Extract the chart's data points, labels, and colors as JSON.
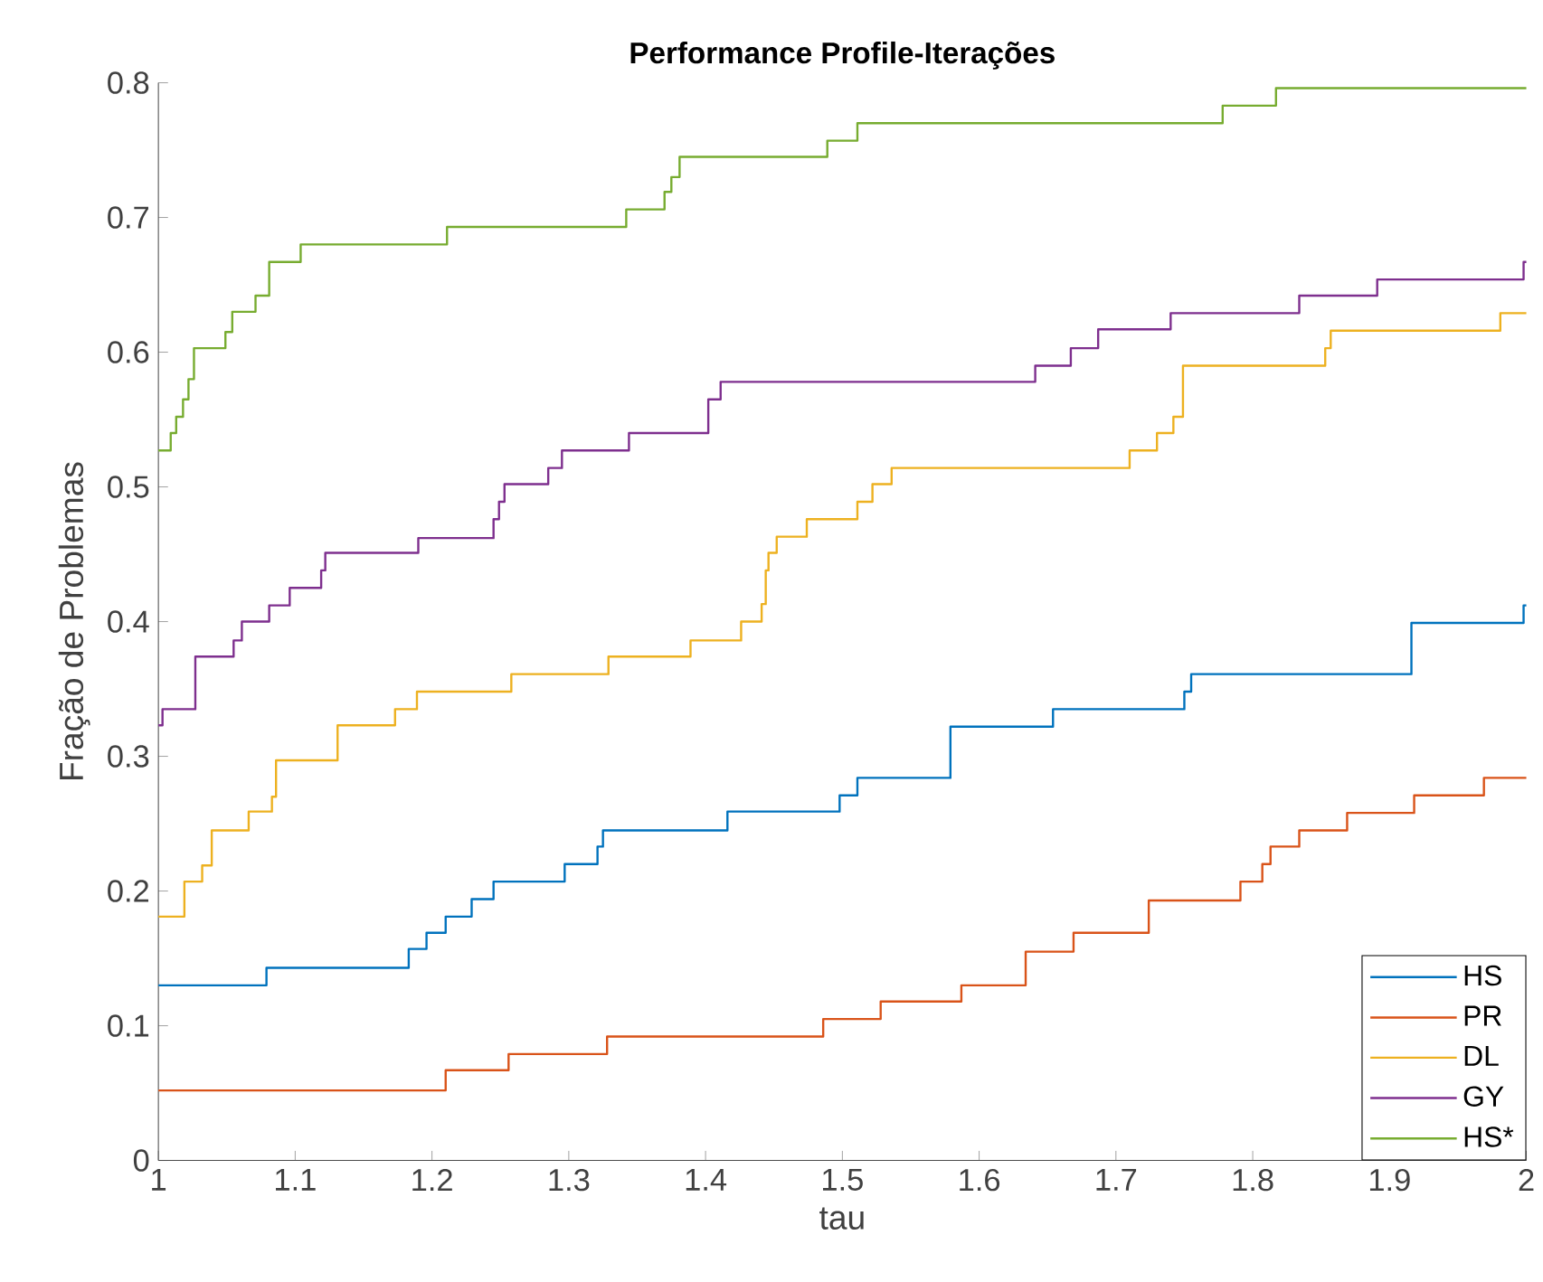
{
  "chart_data": {
    "type": "step",
    "title": "Performance Profile-Iterações",
    "xlabel": "tau",
    "ylabel": "Fração de Problemas",
    "xlim": [
      1,
      2
    ],
    "ylim": [
      0,
      0.8
    ],
    "xticks": [
      1,
      1.1,
      1.2,
      1.3,
      1.4,
      1.5,
      1.6,
      1.7,
      1.8,
      1.9,
      2
    ],
    "yticks": [
      0,
      0.1,
      0.2,
      0.3,
      0.4,
      0.5,
      0.6,
      0.7,
      0.8
    ],
    "grid": false,
    "legend": "bottom right",
    "marker": "none",
    "line_style": "solid",
    "series": [
      {
        "name": "HS",
        "color": "#0072bd",
        "x": [
          1,
          1.079,
          1.183,
          1.196,
          1.21,
          1.229,
          1.245,
          1.297,
          1.321,
          1.325,
          1.416,
          1.498,
          1.511,
          1.579,
          1.654,
          1.75,
          1.755,
          1.916,
          1.998,
          2
        ],
        "values": [
          0.13,
          0.143,
          0.157,
          0.169,
          0.181,
          0.194,
          0.207,
          0.22,
          0.233,
          0.245,
          0.259,
          0.271,
          0.284,
          0.322,
          0.335,
          0.348,
          0.361,
          0.399,
          0.412,
          0.412
        ]
      },
      {
        "name": "PR",
        "color": "#d95319",
        "x": [
          1,
          1.21,
          1.256,
          1.328,
          1.486,
          1.528,
          1.587,
          1.634,
          1.669,
          1.724,
          1.791,
          1.807,
          1.813,
          1.834,
          1.869,
          1.918,
          1.969,
          2
        ],
        "values": [
          0.052,
          0.067,
          0.079,
          0.092,
          0.105,
          0.118,
          0.13,
          0.155,
          0.169,
          0.193,
          0.207,
          0.22,
          0.233,
          0.245,
          0.258,
          0.271,
          0.284,
          0.284
        ]
      },
      {
        "name": "DL",
        "color": "#edb120",
        "x": [
          1,
          1.019,
          1.032,
          1.039,
          1.066,
          1.083,
          1.086,
          1.131,
          1.173,
          1.189,
          1.258,
          1.329,
          1.389,
          1.426,
          1.441,
          1.444,
          1.446,
          1.449,
          1.452,
          1.474,
          1.511,
          1.522,
          1.536,
          1.71,
          1.73,
          1.742,
          1.749,
          1.853,
          1.857,
          1.981,
          2
        ],
        "values": [
          0.181,
          0.207,
          0.219,
          0.245,
          0.259,
          0.27,
          0.297,
          0.323,
          0.335,
          0.348,
          0.361,
          0.374,
          0.386,
          0.4,
          0.413,
          0.438,
          0.451,
          0.451,
          0.463,
          0.476,
          0.489,
          0.502,
          0.514,
          0.527,
          0.54,
          0.552,
          0.59,
          0.603,
          0.616,
          0.629,
          0.629
        ]
      },
      {
        "name": "GY",
        "color": "#7e2f8e",
        "x": [
          1,
          1.003,
          1.027,
          1.055,
          1.061,
          1.081,
          1.096,
          1.119,
          1.122,
          1.19,
          1.245,
          1.249,
          1.253,
          1.285,
          1.295,
          1.344,
          1.402,
          1.411,
          1.641,
          1.667,
          1.687,
          1.74,
          1.834,
          1.891,
          1.998,
          2
        ],
        "values": [
          0.323,
          0.335,
          0.374,
          0.386,
          0.4,
          0.412,
          0.425,
          0.438,
          0.451,
          0.462,
          0.476,
          0.489,
          0.502,
          0.514,
          0.527,
          0.54,
          0.565,
          0.578,
          0.59,
          0.603,
          0.617,
          0.629,
          0.642,
          0.654,
          0.667,
          0.667
        ]
      },
      {
        "name": "HS*",
        "color": "#77ac30",
        "x": [
          1,
          1.009,
          1.013,
          1.018,
          1.022,
          1.026,
          1.049,
          1.054,
          1.071,
          1.081,
          1.104,
          1.211,
          1.342,
          1.37,
          1.375,
          1.381,
          1.489,
          1.511,
          1.778,
          1.817,
          2
        ],
        "values": [
          0.527,
          0.54,
          0.552,
          0.565,
          0.58,
          0.603,
          0.615,
          0.63,
          0.642,
          0.667,
          0.68,
          0.693,
          0.706,
          0.719,
          0.73,
          0.745,
          0.757,
          0.77,
          0.783,
          0.796,
          0.796
        ]
      }
    ]
  }
}
